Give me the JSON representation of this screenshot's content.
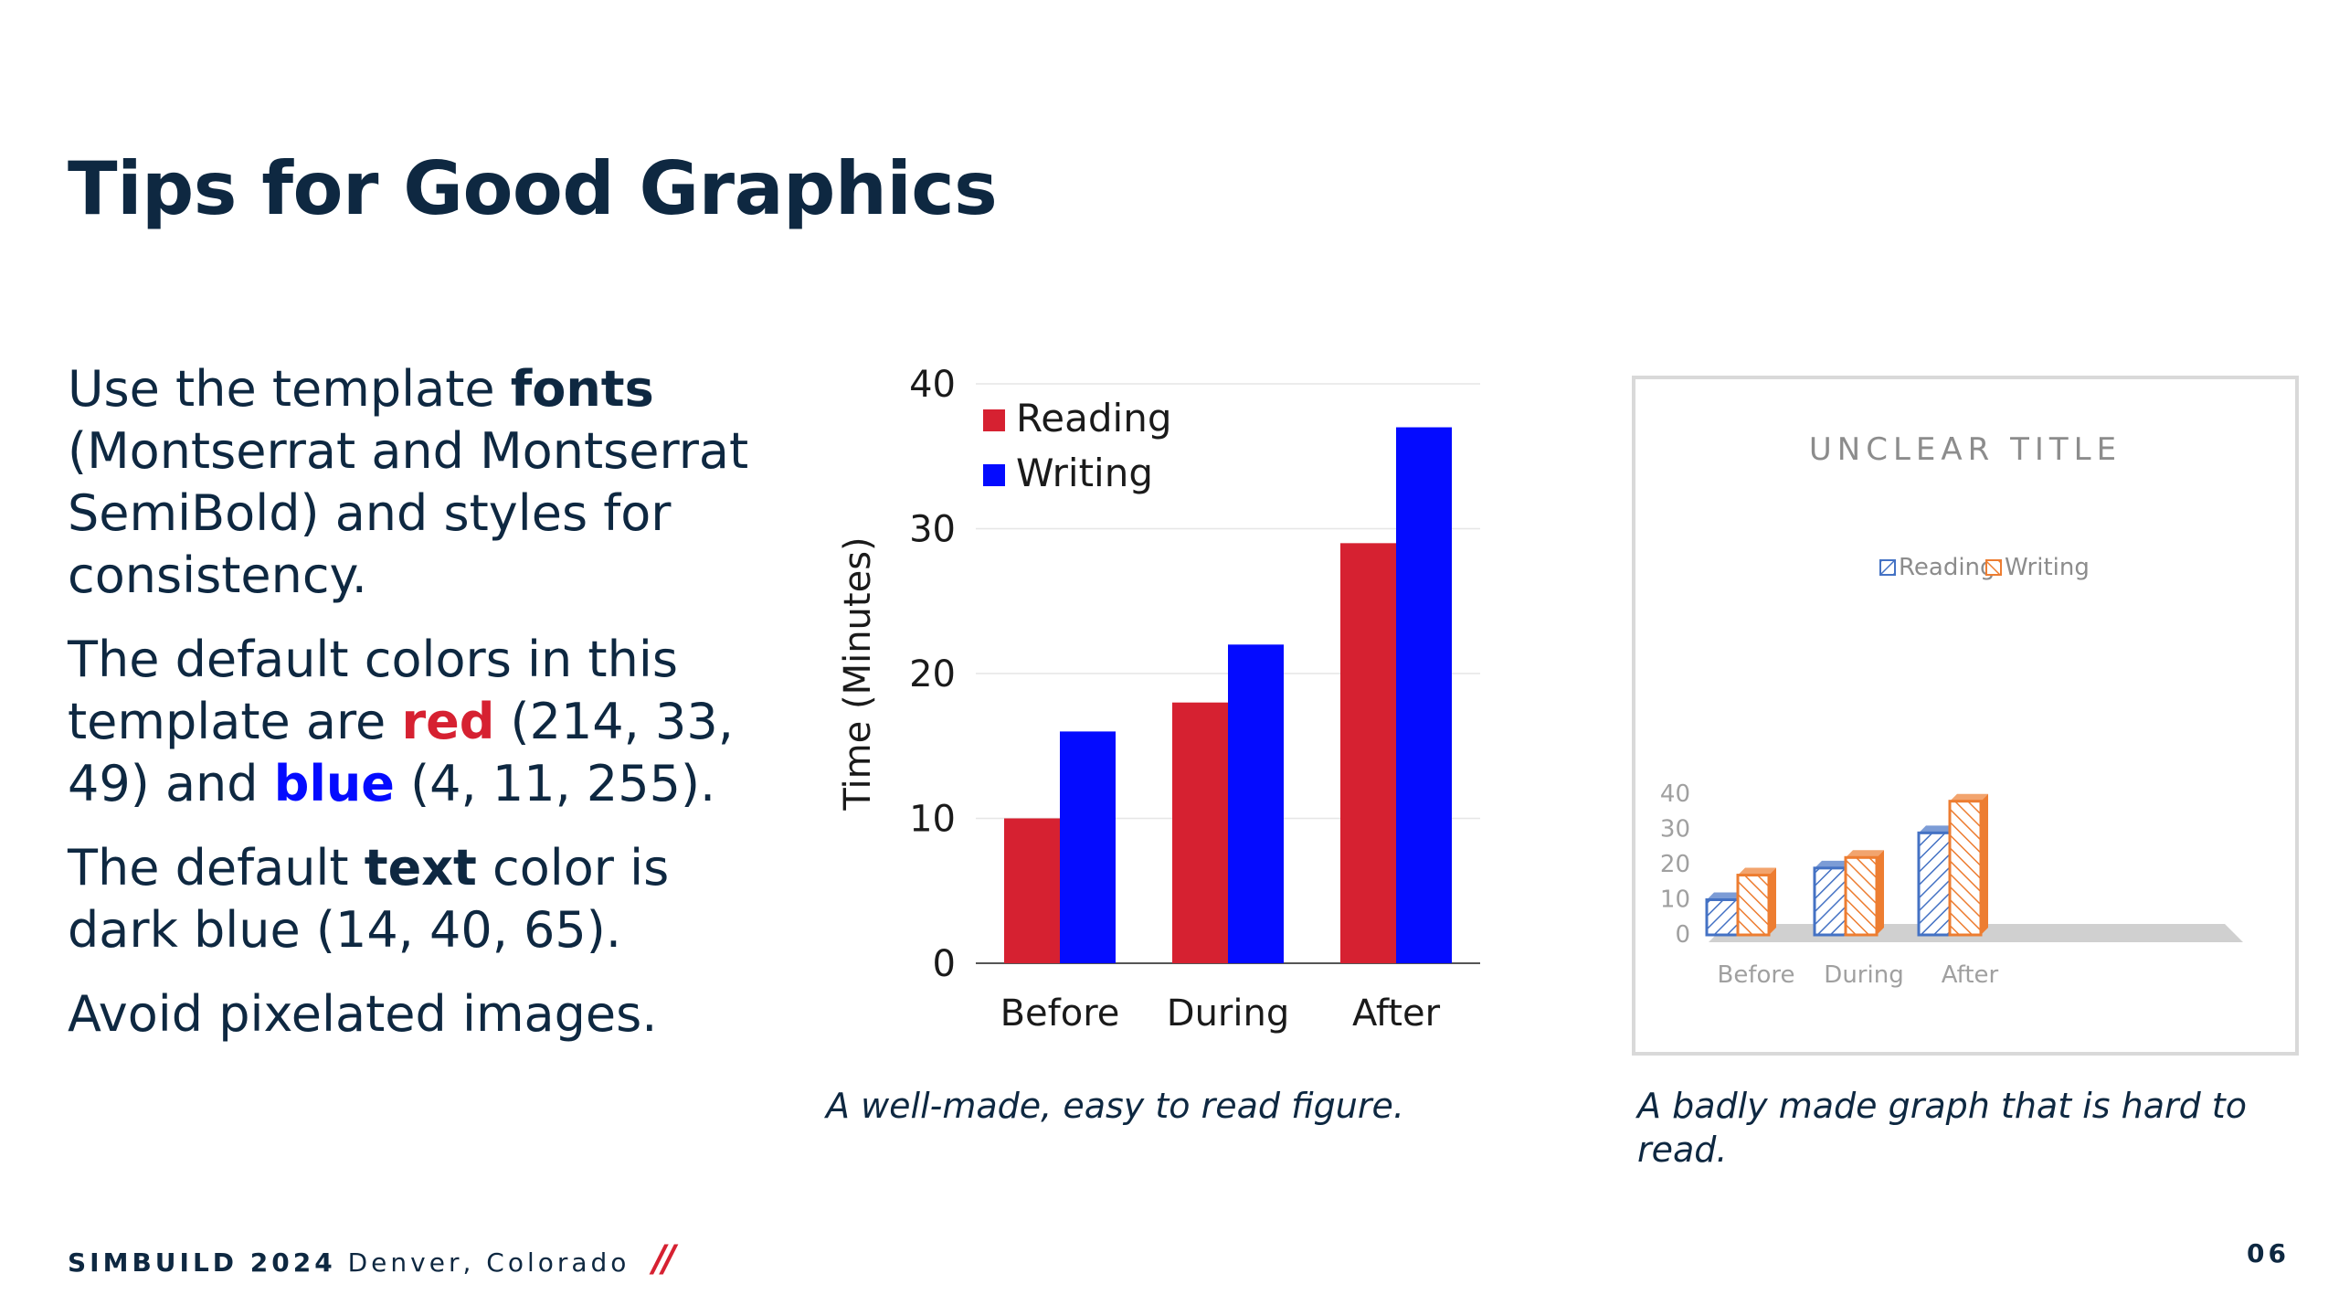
{
  "slide": {
    "title": "Tips for Good Graphics",
    "bullets": [
      {
        "a": "Use the template ",
        "b": "fonts",
        "c": " (Montserrat and Montserrat SemiBold) and styles for consistency."
      },
      {
        "a": "The default colors in this template are ",
        "red_word": "red",
        "b": " (214, 33, 49) and ",
        "blue_word": "blue",
        "c": " (4, 11, 255)."
      },
      {
        "a": "The default ",
        "b": "text",
        "c": " color is dark blue (14, 40, 65)."
      },
      {
        "a": "Avoid pixelated images."
      }
    ],
    "caption_good": "A well-made, easy to read figure.",
    "caption_bad": "A badly made graph that is hard to read.",
    "footer_event": "SIMBUILD 2024",
    "footer_location": " Denver, Colorado ",
    "footer_slash": "//",
    "page_number": "06"
  },
  "colors": {
    "text": "#0e2841",
    "red": "#d62131",
    "blue": "#040bff",
    "bad_blue": "#4472c4",
    "bad_orange": "#ed7d31"
  },
  "chart_data": [
    {
      "type": "bar",
      "title": "",
      "xlabel": "",
      "ylabel": "Time (Minutes)",
      "categories": [
        "Before",
        "During",
        "After"
      ],
      "series": [
        {
          "name": "Reading",
          "values": [
            10,
            18,
            29
          ],
          "color": "#d62131"
        },
        {
          "name": "Writing",
          "values": [
            16,
            22,
            37
          ],
          "color": "#040bff"
        }
      ],
      "ylim": [
        0,
        40
      ],
      "yticks": [
        0,
        10,
        20,
        30,
        40
      ],
      "legend": "top-left",
      "grid": true
    },
    {
      "type": "bar",
      "title": "UNCLEAR TITLE",
      "xlabel": "",
      "ylabel": "",
      "categories": [
        "Before",
        "During",
        "After"
      ],
      "series": [
        {
          "name": "Reading",
          "values": [
            10,
            19,
            29
          ],
          "color": "#4472c4"
        },
        {
          "name": "Writing",
          "values": [
            17,
            22,
            38
          ],
          "color": "#ed7d31"
        }
      ],
      "ylim": [
        0,
        40
      ],
      "yticks": [
        0,
        10,
        20,
        30,
        40
      ],
      "legend": "top-center",
      "grid": false,
      "style": "3d-hatched"
    }
  ]
}
